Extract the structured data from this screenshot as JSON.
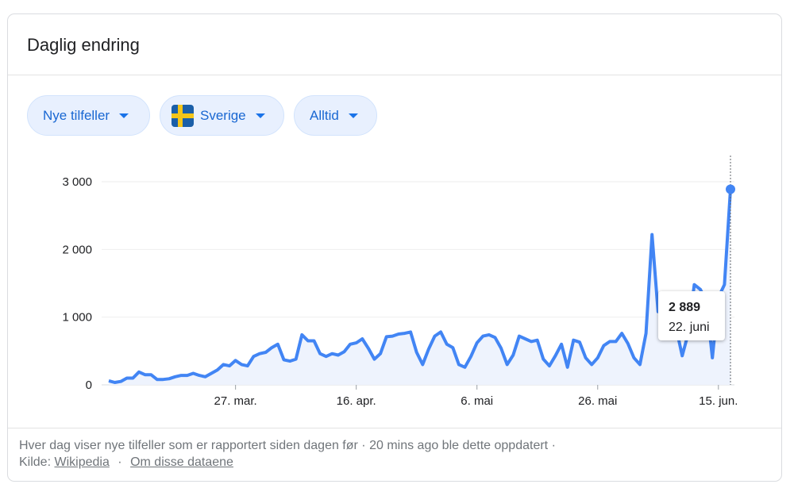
{
  "card": {
    "title": "Daglig endring"
  },
  "filters": {
    "metric": "Nye tilfeller",
    "country": "Sverige",
    "country_flag": "sweden-flag-icon",
    "period": "Alltid"
  },
  "tooltip": {
    "value": "2 889",
    "date": "22. juni"
  },
  "footer": {
    "description": "Hver dag viser nye tilfeller som er rapportert siden dagen før · 20 mins ago ble dette oppdatert  ·",
    "source_label": "Kilde:",
    "source_link": "Wikipedia",
    "separator": "·",
    "about_link": "Om disse dataene"
  },
  "colors": {
    "line": "#4285f4",
    "fill": "#eef3fd",
    "chip_text": "#1967d2",
    "chip_bg": "#e8f0fe"
  },
  "chart_data": {
    "type": "area",
    "title": "",
    "xlabel": "",
    "ylabel": "",
    "ylim": [
      0,
      3000
    ],
    "yticks": [
      0,
      1000,
      2000,
      3000
    ],
    "ytick_labels": [
      "0",
      "1 000",
      "2 000",
      "3 000"
    ],
    "xtick_labels": [
      "27. mar.",
      "16. apr.",
      "6. mai",
      "26. mai",
      "15. jun."
    ],
    "xtick_day_index": [
      21,
      41,
      61,
      81,
      101
    ],
    "grid": true,
    "x_start": "5. mar.",
    "x_end": "22. juni",
    "series": [
      {
        "values": [
          60,
          35,
          50,
          100,
          100,
          190,
          150,
          150,
          80,
          80,
          90,
          120,
          140,
          140,
          170,
          140,
          120,
          170,
          220,
          300,
          280,
          360,
          300,
          280,
          420,
          460,
          480,
          550,
          600,
          370,
          350,
          380,
          740,
          650,
          650,
          460,
          420,
          460,
          440,
          490,
          600,
          620,
          680,
          540,
          380,
          460,
          710,
          720,
          750,
          760,
          780,
          480,
          300,
          530,
          720,
          780,
          600,
          550,
          300,
          260,
          420,
          620,
          720,
          740,
          700,
          540,
          300,
          440,
          720,
          680,
          640,
          660,
          380,
          280,
          430,
          600,
          260,
          660,
          630,
          400,
          300,
          400,
          580,
          640,
          640,
          760,
          610,
          400,
          300,
          760,
          2220,
          1080,
          1070,
          960,
          840,
          430,
          760,
          1480,
          1410,
          1230,
          400,
          1290,
          1480,
          2889
        ]
      }
    ]
  }
}
